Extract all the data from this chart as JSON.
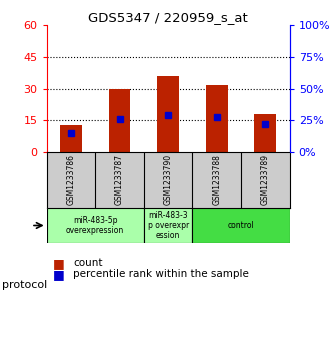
{
  "title": "GDS5347 / 220959_s_at",
  "samples": [
    "GSM1233786",
    "GSM1233787",
    "GSM1233790",
    "GSM1233788",
    "GSM1233789"
  ],
  "count_values": [
    13,
    30,
    36,
    32,
    18
  ],
  "percentile_values": [
    15,
    26,
    29,
    28,
    22
  ],
  "ylim_left": [
    0,
    60
  ],
  "yticks_left": [
    0,
    15,
    30,
    45,
    60
  ],
  "ylim_right": [
    0,
    100
  ],
  "yticks_right": [
    0,
    25,
    50,
    75,
    100
  ],
  "bar_color": "#bb2200",
  "blue_color": "#0000cc",
  "group_info": [
    {
      "label": "miR-483-5p\noverexpression",
      "start": 0,
      "end": 1,
      "color": "#aaffaa"
    },
    {
      "label": "miR-483-3\np overexpr\nession",
      "start": 2,
      "end": 2,
      "color": "#aaffaa"
    },
    {
      "label": "control",
      "start": 3,
      "end": 4,
      "color": "#44dd44"
    }
  ],
  "protocol_label": "protocol",
  "legend_count_label": "count",
  "legend_percentile_label": "percentile rank within the sample",
  "background_color": "#ffffff",
  "sample_box_color": "#cccccc",
  "dotted_ticks": [
    15,
    30,
    45
  ],
  "bar_width": 0.45
}
